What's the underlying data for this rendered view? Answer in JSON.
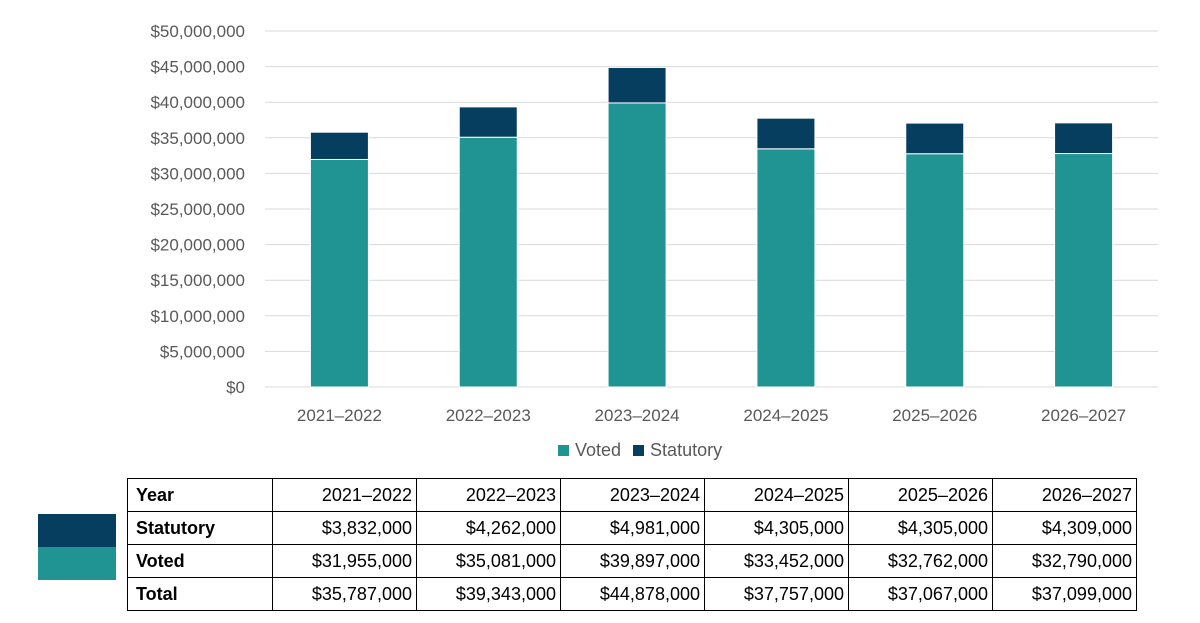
{
  "chart_data": {
    "type": "bar",
    "stacked": true,
    "categories": [
      "2021–2022",
      "2022–2023",
      "2023–2024",
      "2024–2025",
      "2025–2026",
      "2026–2027"
    ],
    "series": [
      {
        "name": "Voted",
        "color": "#1f9492",
        "values": [
          31955000,
          35081000,
          39897000,
          33452000,
          32762000,
          32790000
        ]
      },
      {
        "name": "Statutory",
        "color": "#063e5f",
        "values": [
          3832000,
          4262000,
          4981000,
          4305000,
          4305000,
          4309000
        ]
      }
    ],
    "ylim": [
      0,
      50000000
    ],
    "yticks": [
      0,
      5000000,
      10000000,
      15000000,
      20000000,
      25000000,
      30000000,
      35000000,
      40000000,
      45000000,
      50000000
    ],
    "ytick_labels": [
      "$0",
      "$5,000,000",
      "$10,000,000",
      "$15,000,000",
      "$20,000,000",
      "$25,000,000",
      "$30,000,000",
      "$35,000,000",
      "$40,000,000",
      "$45,000,000",
      "$50,000,000"
    ],
    "grid": true,
    "legend": "bottom",
    "title": "",
    "xlabel": "",
    "ylabel": ""
  },
  "legend": {
    "voted": "Voted",
    "statutory": "Statutory"
  },
  "table": {
    "header": "Year",
    "years": [
      "2021–2022",
      "2022–2023",
      "2023–2024",
      "2024–2025",
      "2025–2026",
      "2026–2027"
    ],
    "rows": [
      {
        "label": "Statutory",
        "values": [
          "$3,832,000",
          "$4,262,000",
          "$4,981,000",
          "$4,305,000",
          "$4,305,000",
          "$4,309,000"
        ]
      },
      {
        "label": "Voted",
        "values": [
          "$31,955,000",
          "$35,081,000",
          "$39,897,000",
          "$33,452,000",
          "$32,762,000",
          "$32,790,000"
        ]
      },
      {
        "label": "Total",
        "values": [
          "$35,787,000",
          "$39,343,000",
          "$44,878,000",
          "$37,757,000",
          "$37,067,000",
          "$37,099,000"
        ]
      }
    ]
  },
  "colors": {
    "voted": "#1f9492",
    "statutory": "#063e5f",
    "grid": "#d9d9d9",
    "tick": "#595959"
  }
}
